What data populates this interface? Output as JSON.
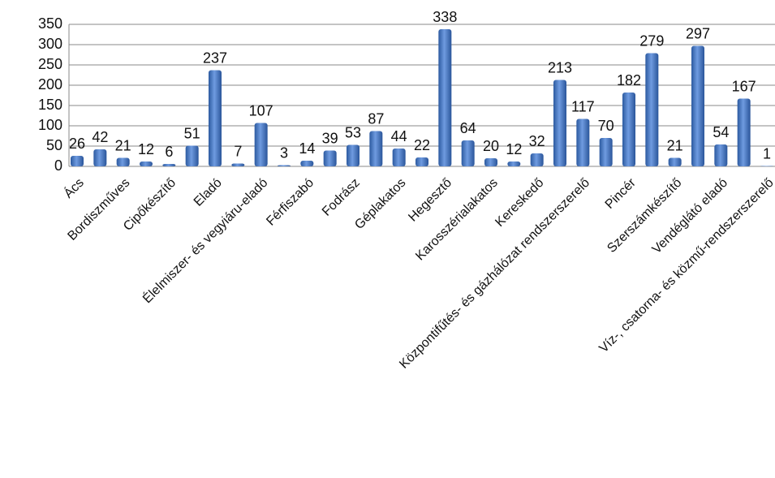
{
  "chart_data": {
    "type": "bar",
    "categories": [
      "Ács",
      null,
      "Bordiszműves",
      null,
      "Cipőkészítő",
      null,
      "Eladó",
      null,
      "Élelmiszer- és vegyiáru-eladó",
      null,
      "Férfiszabó",
      null,
      "Fodrász",
      null,
      "Géplakatos",
      null,
      "Hegesztő",
      null,
      "Karosszérialakatos",
      null,
      "Kereskedő",
      null,
      "Központifűtés- és gázhálózat rendszerszerelő",
      null,
      "Pincér",
      null,
      "Szerszámkészítő",
      null,
      "Vendéglátó eladó",
      null,
      "Víz-, csatorna- és közmű-rendszerszerelő"
    ],
    "values": [
      26,
      42,
      21,
      12,
      6,
      51,
      237,
      7,
      107,
      3,
      14,
      39,
      53,
      87,
      44,
      22,
      338,
      64,
      20,
      12,
      32,
      213,
      117,
      70,
      182,
      279,
      21,
      297,
      54,
      167,
      1
    ],
    "color": "#4a7cc4",
    "ylim": [
      0,
      350
    ],
    "yticks": [
      0,
      50,
      100,
      150,
      200,
      250,
      300,
      350
    ],
    "grid": true
  }
}
